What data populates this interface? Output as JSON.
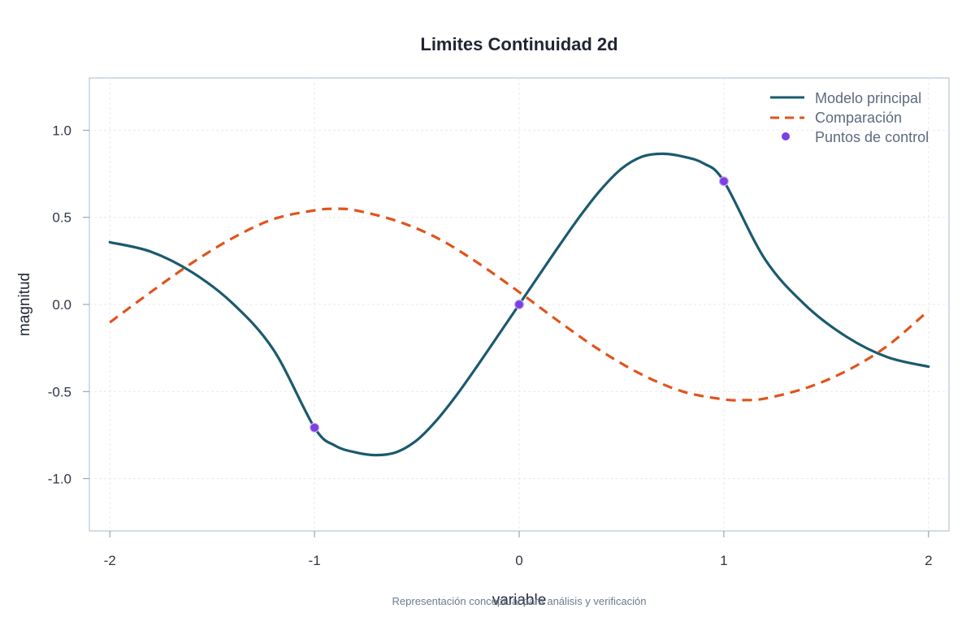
{
  "chart_data": {
    "type": "line",
    "title": "Limites Continuidad 2d",
    "xlabel": "variable",
    "ylabel": "magnitud",
    "caption": "Representación conceptual para análisis y verificación",
    "xlim": [
      -2.1,
      2.1
    ],
    "ylim": [
      -1.3,
      1.3
    ],
    "x_ticks": [
      -2,
      -1,
      0,
      1,
      2
    ],
    "x_tick_labels": [
      "-2",
      "-1",
      "0",
      "1",
      "2"
    ],
    "y_ticks": [
      -1.0,
      -0.5,
      0.0,
      0.5,
      1.0
    ],
    "y_tick_labels": [
      "-1.0",
      "-0.5",
      "0.0",
      "0.5",
      "1.0"
    ],
    "grid": true,
    "legend_position": "top-right",
    "series": [
      {
        "name": "Modelo principal",
        "style": "solid",
        "color": "#1b5a6e",
        "x": [
          -2.0,
          -1.8,
          -1.6,
          -1.4,
          -1.2,
          -1.0,
          -0.9,
          -0.8,
          -0.7,
          -0.6,
          -0.5,
          -0.4,
          -0.3,
          -0.2,
          -0.1,
          0.0,
          0.1,
          0.2,
          0.3,
          0.4,
          0.5,
          0.6,
          0.7,
          0.8,
          0.9,
          1.0,
          1.2,
          1.4,
          1.6,
          1.8,
          2.0
        ],
        "y": [
          0.357,
          0.303,
          0.186,
          0.006,
          -0.261,
          -0.707,
          -0.81,
          -0.849,
          -0.865,
          -0.848,
          -0.779,
          -0.66,
          -0.511,
          -0.345,
          -0.173,
          0.0,
          0.173,
          0.345,
          0.511,
          0.66,
          0.779,
          0.848,
          0.865,
          0.849,
          0.81,
          0.707,
          0.261,
          -0.006,
          -0.186,
          -0.303,
          -0.357
        ]
      },
      {
        "name": "Comparación",
        "style": "dashed",
        "color": "#e0541c",
        "x": [
          -2.0,
          -1.8,
          -1.6,
          -1.4,
          -1.2,
          -1.0,
          -0.9,
          -0.8,
          -0.6,
          -0.4,
          -0.2,
          0.0,
          0.2,
          0.4,
          0.6,
          0.8,
          1.0,
          1.1,
          1.2,
          1.4,
          1.6,
          1.8,
          2.0
        ],
        "y": [
          -0.103,
          0.071,
          0.237,
          0.381,
          0.49,
          0.54,
          0.549,
          0.54,
          0.48,
          0.381,
          0.237,
          0.071,
          -0.103,
          -0.267,
          -0.403,
          -0.5,
          -0.545,
          -0.549,
          -0.54,
          -0.48,
          -0.381,
          -0.237,
          -0.035
        ]
      }
    ],
    "points": {
      "name": "Puntos de control",
      "color": "#7b3fe4",
      "x": [
        -1,
        0,
        1
      ],
      "y": [
        -0.707,
        0.0,
        0.707
      ]
    }
  }
}
